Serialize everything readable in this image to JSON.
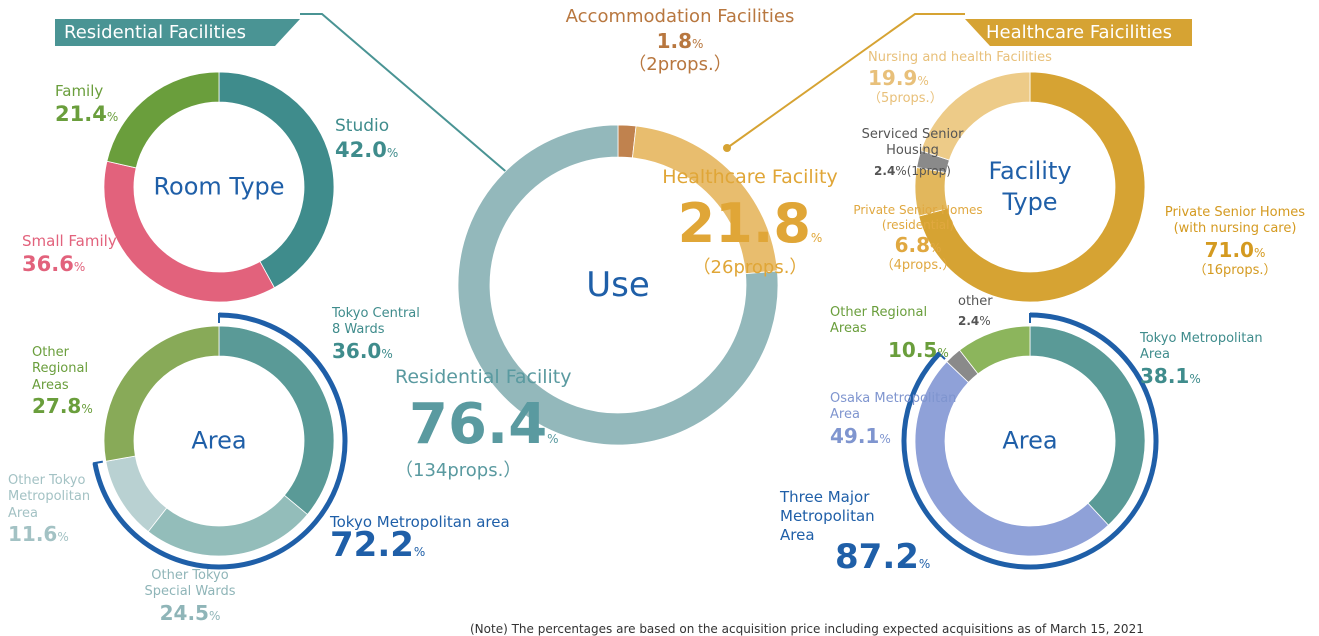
{
  "banners": [
    "Residential Facilities",
    "Healthcare Faicilities"
  ],
  "note": "(Note) The percentages are based on the acquisition price including expected acquisitions as of March 15, 2021",
  "chart_data": [
    {
      "type": "pie",
      "title": "Use",
      "unit": "%",
      "categories": [
        "Accommodation Facilities",
        "Healthcare Facility",
        "Residential Facility"
      ],
      "values": [
        1.8,
        21.8,
        76.4
      ],
      "value_labels": [
        "1.8",
        "21.8",
        "76.4"
      ],
      "props": [
        "（2props.）",
        "（26props.）",
        "（134props.）"
      ],
      "colors": [
        "#c0824e",
        "#e8bd6e",
        "#93b8bb"
      ]
    },
    {
      "type": "pie",
      "title": "Room Type",
      "unit": "%",
      "categories": [
        "Studio",
        "Small Family",
        "Family"
      ],
      "values": [
        42.0,
        36.6,
        21.4
      ],
      "value_labels": [
        "42.0",
        "36.6",
        "21.4"
      ],
      "colors": [
        "#3f8c8c",
        "#e2627c",
        "#6a9e3c"
      ]
    },
    {
      "type": "pie",
      "title": "Area",
      "unit": "%",
      "categories": [
        "Tokyo Central 8 Wards",
        "Other Tokyo Special Wards",
        "Other Tokyo Metropolitan Area",
        "Other Regional Areas"
      ],
      "values": [
        36.0,
        24.5,
        11.6,
        27.8
      ],
      "value_labels": [
        "36.0",
        "24.5",
        "11.6",
        "27.8"
      ],
      "colors": [
        "#5a9a97",
        "#93bdba",
        "#b9d1d2",
        "#88aa58"
      ],
      "arc": {
        "name": "Tokyo Metropolitan area",
        "value": 72.2,
        "value_label": "72.2",
        "color": "#1f5fa8"
      }
    },
    {
      "type": "pie",
      "title": "Facility Type",
      "unit": "%",
      "categories": [
        "Private Senior Homes (with nursing care)",
        "Private Senior Homes (residential)",
        "Serviced Senior Housing",
        "Nursing and health Facilities"
      ],
      "values": [
        71.0,
        6.8,
        2.4,
        19.9
      ],
      "value_labels": [
        "71.0",
        "6.8",
        "2.4",
        "19.9"
      ],
      "props": [
        "（16props.）",
        "（4props.）",
        "(1prop)",
        "（5props.）"
      ],
      "colors": [
        "#d6a333",
        "#e2b75c",
        "#8a8a8a",
        "#edcb88"
      ]
    },
    {
      "type": "pie",
      "title": "Area",
      "unit": "%",
      "categories": [
        "Tokyo Metropolitan Area",
        "Osaka Metropolitan Area",
        "other",
        "Other Regional Areas"
      ],
      "values": [
        38.1,
        49.1,
        2.4,
        10.5
      ],
      "value_labels": [
        "38.1",
        "49.1",
        "2.4",
        "10.5"
      ],
      "colors": [
        "#5a9a97",
        "#8fa1d8",
        "#8a8a8a",
        "#8cb55c"
      ],
      "arc": {
        "name": "Three Major Metropolitan Area",
        "value": 87.2,
        "value_label": "87.2",
        "color": "#1f5fa8"
      }
    }
  ]
}
